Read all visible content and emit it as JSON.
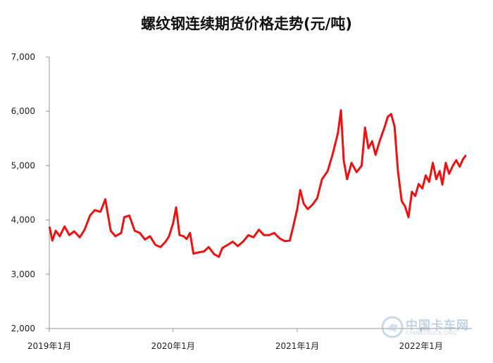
{
  "chart_data": {
    "type": "line",
    "title": "螺纹钢连续期货价格走势(元/吨)",
    "xlabel": "",
    "ylabel": "",
    "ylim": [
      2000,
      7000
    ],
    "y_ticks": [
      "2,000",
      "3,000",
      "4,000",
      "5,000",
      "6,000",
      "7,000"
    ],
    "y_tick_values": [
      2000,
      3000,
      4000,
      5000,
      6000,
      7000
    ],
    "x_ticks": [
      "2019年1月",
      "2020年1月",
      "2021年1月",
      "2022年1月"
    ],
    "x_tick_values": [
      "2019-01-01",
      "2020-01-01",
      "2021-01-01",
      "2022-01-01"
    ],
    "xlim": [
      "2019-01-01",
      "2022-05-31"
    ],
    "grid": false,
    "legend": "none",
    "series": [
      {
        "color": "#ee1111",
        "points": [
          [
            "2019-01-02",
            3860
          ],
          [
            "2019-01-10",
            3620
          ],
          [
            "2019-01-20",
            3800
          ],
          [
            "2019-02-01",
            3700
          ],
          [
            "2019-02-15",
            3880
          ],
          [
            "2019-03-01",
            3720
          ],
          [
            "2019-03-15",
            3790
          ],
          [
            "2019-04-01",
            3680
          ],
          [
            "2019-04-15",
            3820
          ],
          [
            "2019-05-01",
            4080
          ],
          [
            "2019-05-15",
            4180
          ],
          [
            "2019-06-01",
            4150
          ],
          [
            "2019-06-15",
            4380
          ],
          [
            "2019-07-01",
            3800
          ],
          [
            "2019-07-15",
            3700
          ],
          [
            "2019-08-01",
            3760
          ],
          [
            "2019-08-10",
            4050
          ],
          [
            "2019-08-25",
            4080
          ],
          [
            "2019-09-10",
            3800
          ],
          [
            "2019-09-25",
            3760
          ],
          [
            "2019-10-10",
            3640
          ],
          [
            "2019-10-25",
            3700
          ],
          [
            "2019-11-10",
            3540
          ],
          [
            "2019-11-25",
            3500
          ],
          [
            "2019-12-10",
            3600
          ],
          [
            "2019-12-20",
            3700
          ],
          [
            "2020-01-01",
            3940
          ],
          [
            "2020-01-10",
            4230
          ],
          [
            "2020-01-20",
            3720
          ],
          [
            "2020-02-01",
            3700
          ],
          [
            "2020-02-10",
            3650
          ],
          [
            "2020-02-20",
            3760
          ],
          [
            "2020-03-01",
            3380
          ],
          [
            "2020-03-15",
            3400
          ],
          [
            "2020-04-01",
            3420
          ],
          [
            "2020-04-15",
            3500
          ],
          [
            "2020-05-01",
            3370
          ],
          [
            "2020-05-15",
            3320
          ],
          [
            "2020-05-25",
            3480
          ],
          [
            "2020-06-10",
            3540
          ],
          [
            "2020-06-25",
            3600
          ],
          [
            "2020-07-10",
            3520
          ],
          [
            "2020-07-25",
            3600
          ],
          [
            "2020-08-10",
            3720
          ],
          [
            "2020-08-25",
            3680
          ],
          [
            "2020-09-10",
            3820
          ],
          [
            "2020-09-25",
            3720
          ],
          [
            "2020-10-10",
            3720
          ],
          [
            "2020-10-25",
            3760
          ],
          [
            "2020-11-10",
            3660
          ],
          [
            "2020-11-25",
            3610
          ],
          [
            "2020-12-10",
            3620
          ],
          [
            "2020-12-20",
            3870
          ],
          [
            "2021-01-01",
            4200
          ],
          [
            "2021-01-10",
            4550
          ],
          [
            "2021-01-20",
            4300
          ],
          [
            "2021-02-01",
            4200
          ],
          [
            "2021-02-15",
            4280
          ],
          [
            "2021-03-01",
            4400
          ],
          [
            "2021-03-15",
            4750
          ],
          [
            "2021-04-01",
            4900
          ],
          [
            "2021-04-15",
            5200
          ],
          [
            "2021-05-01",
            5600
          ],
          [
            "2021-05-10",
            6020
          ],
          [
            "2021-05-18",
            5100
          ],
          [
            "2021-05-28",
            4750
          ],
          [
            "2021-06-10",
            5050
          ],
          [
            "2021-06-25",
            4880
          ],
          [
            "2021-07-10",
            5000
          ],
          [
            "2021-07-20",
            5700
          ],
          [
            "2021-07-30",
            5320
          ],
          [
            "2021-08-10",
            5450
          ],
          [
            "2021-08-20",
            5200
          ],
          [
            "2021-09-01",
            5450
          ],
          [
            "2021-09-15",
            5700
          ],
          [
            "2021-09-25",
            5900
          ],
          [
            "2021-10-05",
            5950
          ],
          [
            "2021-10-15",
            5720
          ],
          [
            "2021-10-25",
            4900
          ],
          [
            "2021-11-05",
            4350
          ],
          [
            "2021-11-15",
            4250
          ],
          [
            "2021-11-25",
            4050
          ],
          [
            "2021-12-05",
            4520
          ],
          [
            "2021-12-15",
            4440
          ],
          [
            "2021-12-25",
            4660
          ],
          [
            "2022-01-05",
            4580
          ],
          [
            "2022-01-15",
            4820
          ],
          [
            "2022-01-25",
            4700
          ],
          [
            "2022-02-05",
            5050
          ],
          [
            "2022-02-15",
            4750
          ],
          [
            "2022-02-25",
            4900
          ],
          [
            "2022-03-05",
            4650
          ],
          [
            "2022-03-15",
            5050
          ],
          [
            "2022-03-25",
            4850
          ],
          [
            "2022-04-05",
            5000
          ],
          [
            "2022-04-15",
            5100
          ],
          [
            "2022-04-25",
            4980
          ],
          [
            "2022-05-05",
            5120
          ],
          [
            "2022-05-12",
            5180
          ]
        ]
      }
    ]
  },
  "watermark": {
    "text": "中国卡车网",
    "sub": "CHINATRUCK.ORG"
  }
}
